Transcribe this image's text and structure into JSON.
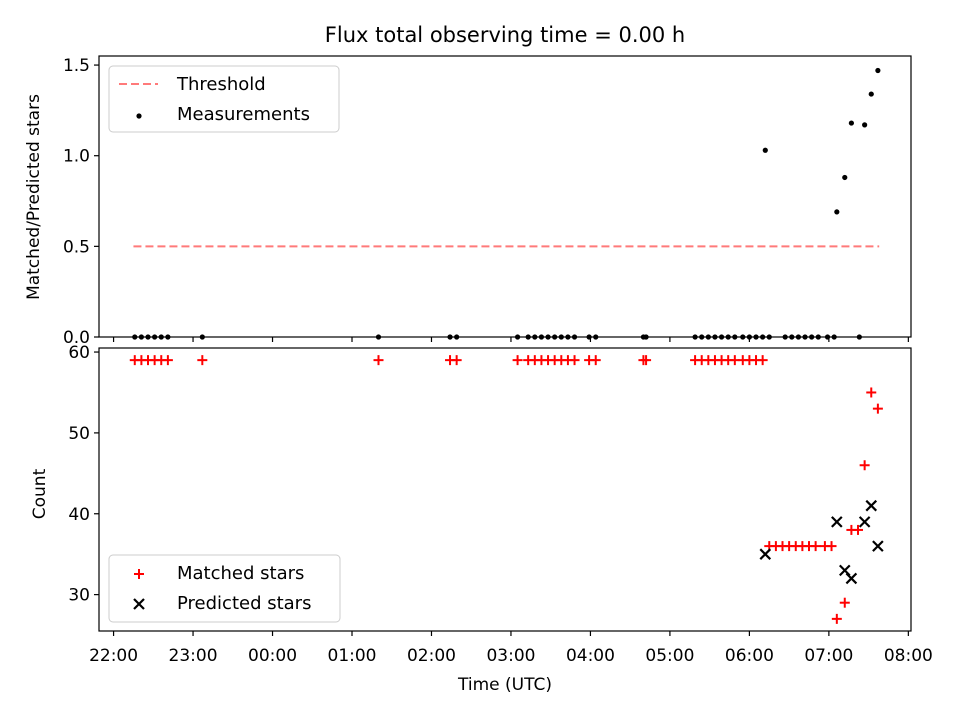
{
  "title": "Flux total observing time = 0.00 h",
  "chart_data": [
    {
      "type": "scatter",
      "panel": "top",
      "ylabel": "Matched/Predicted stars",
      "ylim": [
        0,
        1.55
      ],
      "yticks": [
        0.0,
        0.5,
        1.0,
        1.5
      ],
      "ytick_labels": [
        "0.0",
        "0.5",
        "1.0",
        "1.5"
      ],
      "legend_position": "upper-left",
      "threshold": {
        "name": "Threshold",
        "value": 0.5,
        "x": [
          "22:15",
          "07:38"
        ],
        "color": "#ff7a7a",
        "style": "dashed"
      },
      "series": [
        {
          "name": "Measurements",
          "color": "#000000",
          "marker": "dot",
          "points": [
            [
              "22:16",
              0
            ],
            [
              "22:21",
              0
            ],
            [
              "22:26",
              0
            ],
            [
              "22:31",
              0
            ],
            [
              "22:36",
              0
            ],
            [
              "22:41",
              0
            ],
            [
              "23:07",
              0
            ],
            [
              "01:20",
              0
            ],
            [
              "02:14",
              0
            ],
            [
              "02:19",
              0
            ],
            [
              "03:05",
              0
            ],
            [
              "03:13",
              0
            ],
            [
              "03:18",
              0
            ],
            [
              "03:23",
              0
            ],
            [
              "03:28",
              0
            ],
            [
              "03:33",
              0
            ],
            [
              "03:38",
              0
            ],
            [
              "03:43",
              0
            ],
            [
              "03:48",
              0
            ],
            [
              "03:59",
              0
            ],
            [
              "04:04",
              0
            ],
            [
              "04:40",
              0
            ],
            [
              "04:42",
              0
            ],
            [
              "05:19",
              0
            ],
            [
              "05:24",
              0
            ],
            [
              "05:29",
              0
            ],
            [
              "05:34",
              0
            ],
            [
              "05:39",
              0
            ],
            [
              "05:44",
              0
            ],
            [
              "05:49",
              0
            ],
            [
              "05:55",
              0
            ],
            [
              "06:00",
              0
            ],
            [
              "06:05",
              0
            ],
            [
              "06:10",
              0
            ],
            [
              "06:15",
              0
            ],
            [
              "06:27",
              0
            ],
            [
              "06:32",
              0
            ],
            [
              "06:37",
              0
            ],
            [
              "06:42",
              0
            ],
            [
              "06:47",
              0
            ],
            [
              "06:52",
              0
            ],
            [
              "06:59",
              0
            ],
            [
              "07:04",
              0
            ],
            [
              "06:12",
              1.03
            ],
            [
              "07:06",
              0.69
            ],
            [
              "07:12",
              0.88
            ],
            [
              "07:17",
              1.18
            ],
            [
              "07:23",
              0
            ],
            [
              "07:27",
              1.17
            ],
            [
              "07:32",
              1.34
            ],
            [
              "07:37",
              1.47
            ]
          ]
        }
      ]
    },
    {
      "type": "scatter",
      "panel": "bottom",
      "xlabel": "Time (UTC)",
      "ylabel": "Count",
      "ylim": [
        25.5,
        60.5
      ],
      "yticks": [
        30,
        40,
        50,
        60
      ],
      "ytick_labels": [
        "30",
        "40",
        "50",
        "60"
      ],
      "xticks": [
        "22:00",
        "23:00",
        "00:00",
        "01:00",
        "02:00",
        "03:00",
        "04:00",
        "05:00",
        "06:00",
        "07:00",
        "08:00"
      ],
      "xlim": [
        "21:49",
        "08:02"
      ],
      "legend_position": "lower-left",
      "series": [
        {
          "name": "Matched stars",
          "color": "#ff0000",
          "marker": "plus",
          "points": [
            [
              "22:16",
              59
            ],
            [
              "22:21",
              59
            ],
            [
              "22:26",
              59
            ],
            [
              "22:31",
              59
            ],
            [
              "22:36",
              59
            ],
            [
              "22:41",
              59
            ],
            [
              "23:07",
              59
            ],
            [
              "01:20",
              59
            ],
            [
              "02:14",
              59
            ],
            [
              "02:19",
              59
            ],
            [
              "03:05",
              59
            ],
            [
              "03:13",
              59
            ],
            [
              "03:18",
              59
            ],
            [
              "03:23",
              59
            ],
            [
              "03:28",
              59
            ],
            [
              "03:33",
              59
            ],
            [
              "03:38",
              59
            ],
            [
              "03:43",
              59
            ],
            [
              "03:48",
              59
            ],
            [
              "03:59",
              59
            ],
            [
              "04:04",
              59
            ],
            [
              "04:40",
              59
            ],
            [
              "04:42",
              59
            ],
            [
              "05:19",
              59
            ],
            [
              "05:24",
              59
            ],
            [
              "05:29",
              59
            ],
            [
              "05:34",
              59
            ],
            [
              "05:39",
              59
            ],
            [
              "05:44",
              59
            ],
            [
              "05:49",
              59
            ],
            [
              "05:55",
              59
            ],
            [
              "06:00",
              59
            ],
            [
              "06:05",
              59
            ],
            [
              "06:10",
              59
            ],
            [
              "06:15",
              36
            ],
            [
              "06:20",
              36
            ],
            [
              "06:25",
              36
            ],
            [
              "06:30",
              36
            ],
            [
              "06:35",
              36
            ],
            [
              "06:40",
              36
            ],
            [
              "06:45",
              36
            ],
            [
              "06:50",
              36
            ],
            [
              "06:57",
              36
            ],
            [
              "07:02",
              36
            ],
            [
              "07:06",
              27
            ],
            [
              "07:12",
              29
            ],
            [
              "07:17",
              38
            ],
            [
              "07:22",
              38
            ],
            [
              "07:27",
              46
            ],
            [
              "07:32",
              55
            ],
            [
              "07:37",
              53
            ]
          ]
        },
        {
          "name": "Predicted stars",
          "color": "#000000",
          "marker": "x",
          "points": [
            [
              "06:12",
              35
            ],
            [
              "07:06",
              39
            ],
            [
              "07:12",
              33
            ],
            [
              "07:17",
              32
            ],
            [
              "07:27",
              39
            ],
            [
              "07:32",
              41
            ],
            [
              "07:37",
              36
            ]
          ]
        }
      ]
    }
  ]
}
